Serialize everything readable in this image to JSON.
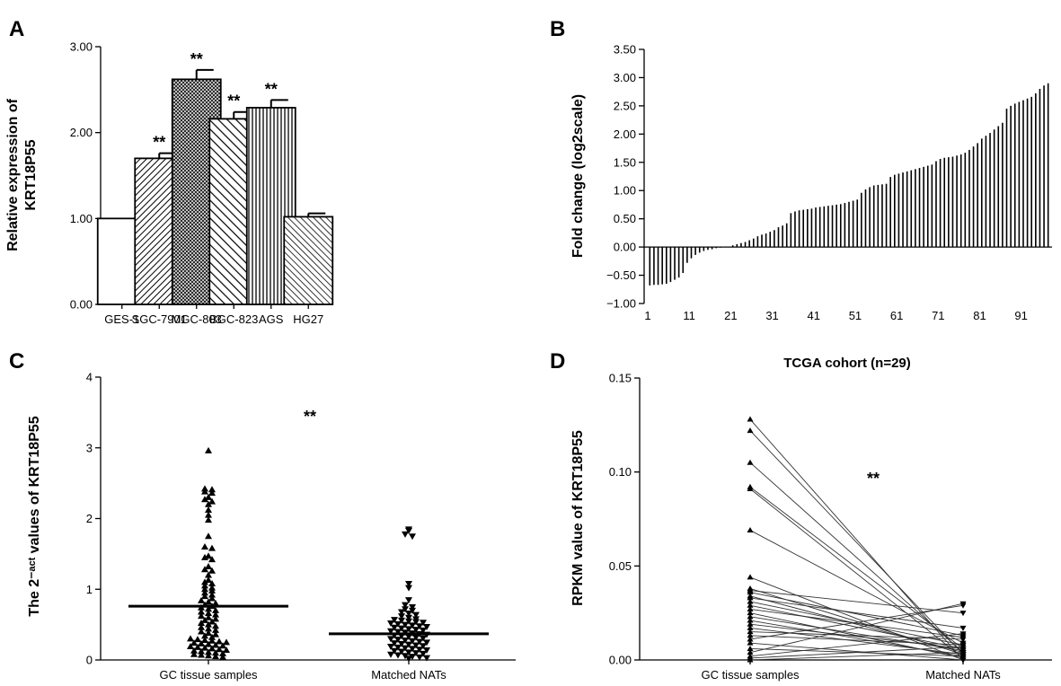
{
  "chart_data": [
    {
      "panel": "A",
      "type": "bar",
      "ylabel_line1": "Relative expression of",
      "ylabel_line2": "KRT18P55",
      "ylim": [
        0,
        3
      ],
      "yticks": [
        "0.00",
        "1.00",
        "2.00",
        "3.00"
      ],
      "categories": [
        "GES-1",
        "SGC-7901",
        "MGC-803",
        "BGC-823",
        "AGS",
        "HG27"
      ],
      "values": [
        1.0,
        1.7,
        2.62,
        2.16,
        2.29,
        1.02
      ],
      "errors": [
        0,
        0.06,
        0.11,
        0.08,
        0.09,
        0.04
      ],
      "significance": [
        "",
        "**",
        "**",
        "**",
        "**",
        ""
      ]
    },
    {
      "panel": "B",
      "type": "bar",
      "ylabel": "Fold change (log2scale)",
      "ylim": [
        -1,
        3.5
      ],
      "yticks": [
        "−1.00",
        "−0.50",
        "0.00",
        "0.50",
        "1.00",
        "1.50",
        "2.00",
        "2.50",
        "3.00",
        "3.50"
      ],
      "xticks": [
        "1",
        "11",
        "21",
        "31",
        "41",
        "51",
        "61",
        "71",
        "81",
        "91"
      ],
      "values": [
        -0.68,
        -0.67,
        -0.67,
        -0.66,
        -0.65,
        -0.62,
        -0.58,
        -0.54,
        -0.46,
        -0.28,
        -0.2,
        -0.14,
        -0.1,
        -0.07,
        -0.05,
        -0.04,
        -0.02,
        -0.01,
        0.0,
        0.01,
        0.03,
        0.05,
        0.07,
        0.09,
        0.12,
        0.15,
        0.19,
        0.22,
        0.24,
        0.27,
        0.3,
        0.35,
        0.38,
        0.42,
        0.6,
        0.63,
        0.65,
        0.66,
        0.67,
        0.68,
        0.7,
        0.71,
        0.72,
        0.73,
        0.74,
        0.75,
        0.76,
        0.78,
        0.8,
        0.82,
        0.84,
        0.96,
        1.02,
        1.06,
        1.09,
        1.1,
        1.11,
        1.12,
        1.24,
        1.28,
        1.3,
        1.32,
        1.34,
        1.36,
        1.38,
        1.4,
        1.42,
        1.44,
        1.46,
        1.52,
        1.56,
        1.58,
        1.59,
        1.6,
        1.62,
        1.64,
        1.67,
        1.72,
        1.78,
        1.84,
        1.92,
        1.97,
        2.02,
        2.08,
        2.14,
        2.2,
        2.45,
        2.5,
        2.54,
        2.57,
        2.6,
        2.63,
        2.66,
        2.72,
        2.8,
        2.86,
        2.9
      ]
    },
    {
      "panel": "C",
      "type": "scatter",
      "ylabel": "The 2⁻ᵃᶜᵗ values of KRT18P55",
      "ylim": [
        0,
        4
      ],
      "yticks": [
        "0",
        "1",
        "2",
        "3",
        "4"
      ],
      "categories": [
        "GC tissue samples",
        "Matched NATs"
      ],
      "means": [
        0.76,
        0.37
      ],
      "significance": "**",
      "series": [
        {
          "values": [
            2.96,
            2.42,
            2.41,
            2.38,
            2.36,
            2.3,
            2.27,
            2.24,
            2.2,
            2.12,
            2.05,
            1.98,
            1.75,
            1.6,
            1.58,
            1.47,
            1.45,
            1.42,
            1.32,
            1.28,
            1.26,
            1.2,
            1.13,
            1.1,
            1.08,
            1.05,
            1.02,
            1.0,
            0.98,
            0.95,
            0.92,
            0.9,
            0.87,
            0.84,
            0.82,
            0.8,
            0.78,
            0.76,
            0.74,
            0.72,
            0.7,
            0.68,
            0.66,
            0.64,
            0.62,
            0.6,
            0.58,
            0.56,
            0.54,
            0.52,
            0.5,
            0.48,
            0.46,
            0.44,
            0.42,
            0.4,
            0.38,
            0.36,
            0.34,
            0.32,
            0.3,
            0.29,
            0.28,
            0.27,
            0.26,
            0.25,
            0.24,
            0.23,
            0.22,
            0.21,
            0.2,
            0.19,
            0.18,
            0.17,
            0.16,
            0.15,
            0.14,
            0.13,
            0.12,
            0.11,
            0.1,
            0.09,
            0.08,
            0.07,
            0.06,
            0.05,
            0.04
          ]
        },
        {
          "values": [
            1.85,
            1.83,
            1.78,
            1.75,
            1.08,
            1.02,
            0.85,
            0.78,
            0.75,
            0.72,
            0.7,
            0.68,
            0.66,
            0.64,
            0.62,
            0.6,
            0.58,
            0.57,
            0.56,
            0.55,
            0.54,
            0.53,
            0.52,
            0.51,
            0.5,
            0.49,
            0.48,
            0.47,
            0.46,
            0.45,
            0.44,
            0.43,
            0.42,
            0.41,
            0.4,
            0.39,
            0.38,
            0.37,
            0.36,
            0.35,
            0.34,
            0.33,
            0.32,
            0.31,
            0.3,
            0.29,
            0.28,
            0.27,
            0.26,
            0.25,
            0.24,
            0.23,
            0.22,
            0.21,
            0.2,
            0.19,
            0.18,
            0.17,
            0.16,
            0.15,
            0.14,
            0.13,
            0.12,
            0.11,
            0.1,
            0.09,
            0.08,
            0.07,
            0.06,
            0.05,
            0.04,
            0.03,
            0.02
          ]
        }
      ]
    },
    {
      "panel": "D",
      "type": "line",
      "title": "TCGA cohort (n=29)",
      "ylabel": "RPKM value of KRT18P55",
      "ylim": [
        0,
        0.15
      ],
      "yticks": [
        "0.00",
        "0.05",
        "0.10",
        "0.15"
      ],
      "categories": [
        "GC tissue samples",
        "Matched NATs"
      ],
      "significance": "**",
      "pairs": [
        [
          0.128,
          0.0
        ],
        [
          0.122,
          0.003
        ],
        [
          0.105,
          0.004
        ],
        [
          0.092,
          0.006
        ],
        [
          0.091,
          0.001
        ],
        [
          0.069,
          0.009
        ],
        [
          0.044,
          0.0
        ],
        [
          0.038,
          0.003
        ],
        [
          0.037,
          0.025
        ],
        [
          0.036,
          0.013
        ],
        [
          0.034,
          0.004
        ],
        [
          0.033,
          0.017
        ],
        [
          0.031,
          0.008
        ],
        [
          0.029,
          0.006
        ],
        [
          0.027,
          0.012
        ],
        [
          0.025,
          0.001
        ],
        [
          0.023,
          0.005
        ],
        [
          0.021,
          0.002
        ],
        [
          0.019,
          0.006
        ],
        [
          0.017,
          0.003
        ],
        [
          0.015,
          0.011
        ],
        [
          0.013,
          0.008
        ],
        [
          0.011,
          0.029
        ],
        [
          0.009,
          0.0
        ],
        [
          0.006,
          0.002
        ],
        [
          0.004,
          0.03
        ],
        [
          0.002,
          0.014
        ],
        [
          0.001,
          0.007
        ],
        [
          0.0,
          0.004
        ]
      ]
    }
  ]
}
